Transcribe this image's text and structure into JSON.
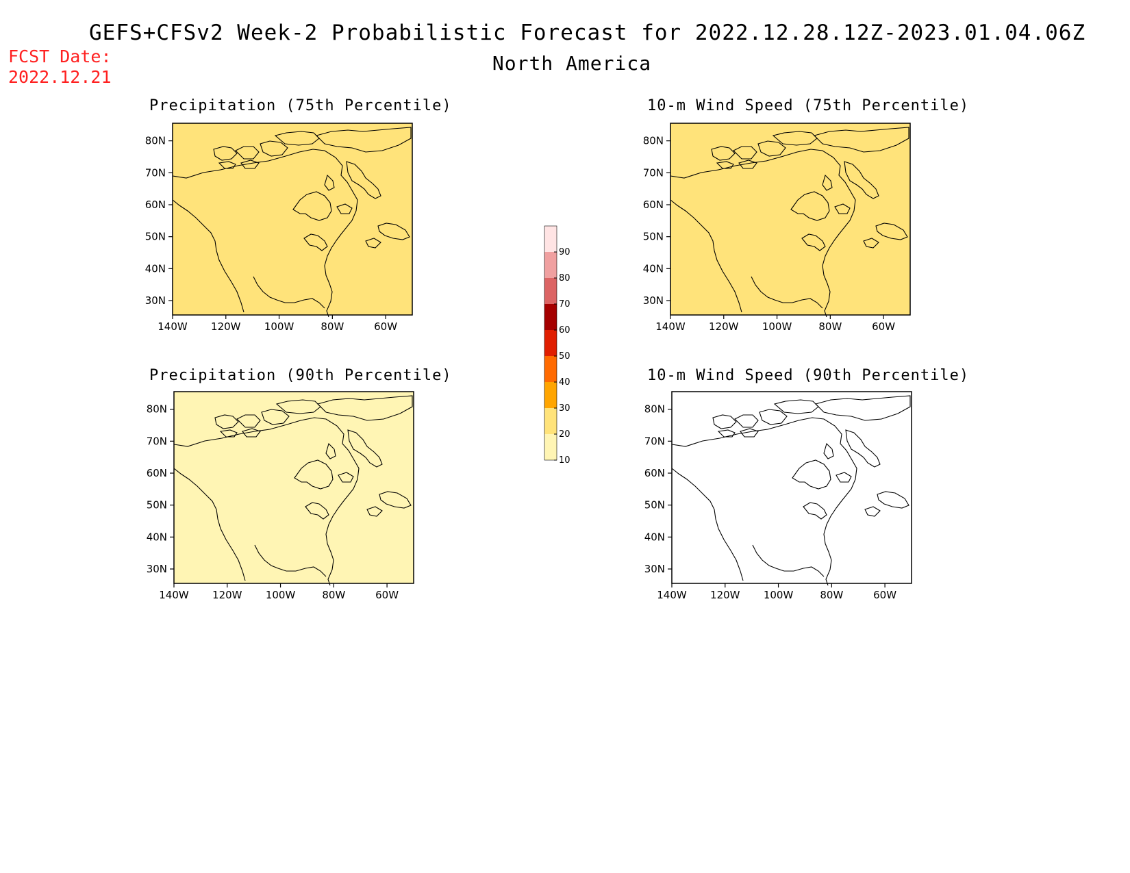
{
  "header": {
    "title": "GEFS+CFSv2 Week-2 Probabilistic Forecast for 2022.12.28.12Z-2023.01.04.06Z",
    "subtitle": "North America",
    "fcst_label": "FCST Date:",
    "fcst_date": "2022.12.21"
  },
  "axes": {
    "lat_ticks": [
      "80N",
      "70N",
      "60N",
      "50N",
      "40N",
      "30N"
    ],
    "lon_ticks": [
      "140W",
      "120W",
      "100W",
      "80W",
      "60W"
    ]
  },
  "panels": [
    {
      "title": "Precipitation (75th Percentile)",
      "base_category": "20-30"
    },
    {
      "title": "10-m Wind Speed (75th Percentile)",
      "base_category": "20-30"
    },
    {
      "title": "Precipitation (90th Percentile)",
      "base_category": "10-20"
    },
    {
      "title": "10-m Wind Speed (90th Percentile)",
      "base_category": "0-10"
    }
  ],
  "colorbar": {
    "labels": [
      "10",
      "20",
      "30",
      "40",
      "50",
      "60",
      "70",
      "80",
      "90"
    ],
    "colors": [
      "#fff5b4",
      "#ffe37a",
      "#ffa500",
      "#ff6a00",
      "#e01e00",
      "#a50000",
      "#dc6464",
      "#f0a0a0",
      "#ffe4e4"
    ]
  }
}
